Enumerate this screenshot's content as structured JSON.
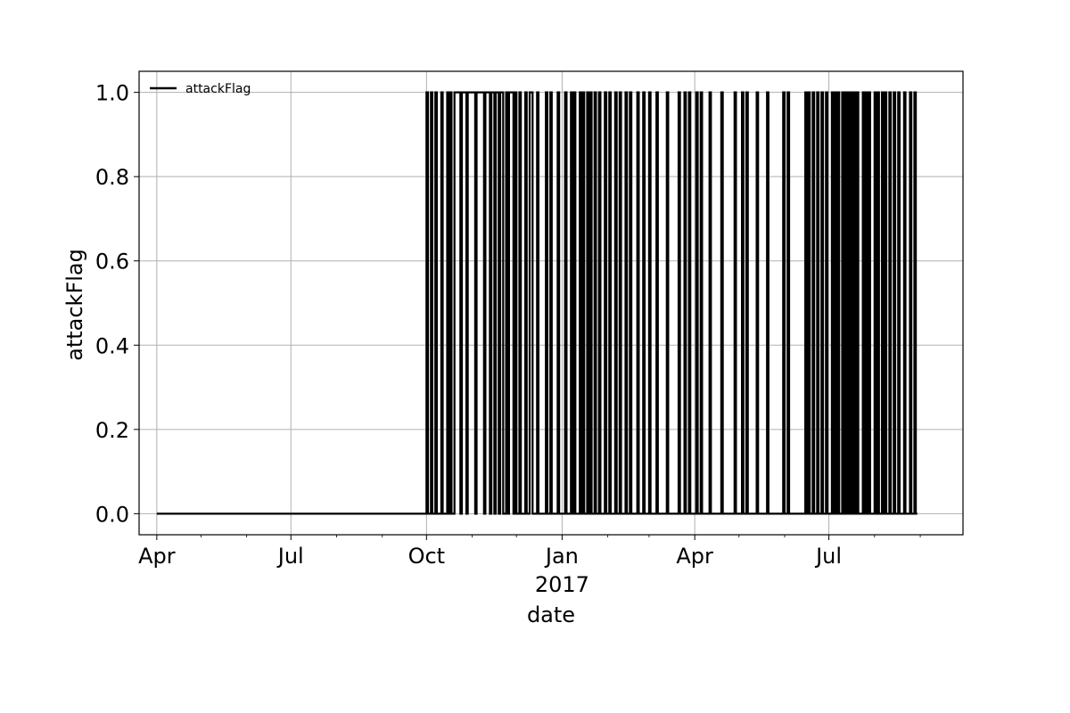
{
  "chart_data": {
    "type": "line",
    "step": true,
    "grid": true,
    "legend_position": "top-left",
    "xlabel": "date",
    "ylabel": "attackFlag",
    "xlim": [
      "2016-03-20",
      "2017-09-30"
    ],
    "ylim": [
      -0.05,
      1.05
    ],
    "x_ticks": [
      {
        "date": "2016-04-01",
        "label": "Apr"
      },
      {
        "date": "2016-07-01",
        "label": "Jul"
      },
      {
        "date": "2016-10-01",
        "label": "Oct"
      },
      {
        "date": "2017-01-01",
        "label": "Jan"
      },
      {
        "date": "2017-04-01",
        "label": "Apr"
      },
      {
        "date": "2017-07-01",
        "label": "Jul"
      }
    ],
    "x_year_label": {
      "date": "2017-01-01",
      "label": "2017"
    },
    "y_ticks": [
      0.0,
      0.2,
      0.4,
      0.6,
      0.8,
      1.0
    ],
    "y_tick_labels": [
      "0.0",
      "0.2",
      "0.4",
      "0.6",
      "0.8",
      "1.0"
    ],
    "series": [
      {
        "name": "attackFlag",
        "color": "#000000",
        "x": [
          "2016-04-01",
          "2016-10-01",
          "2016-10-02",
          "2016-10-04",
          "2016-10-05",
          "2016-10-07",
          "2016-10-08",
          "2016-10-11",
          "2016-10-12",
          "2016-10-15",
          "2016-10-16",
          "2016-10-17",
          "2016-10-18",
          "2016-10-20",
          "2016-10-24",
          "2016-10-25",
          "2016-10-28",
          "2016-10-29",
          "2016-11-03",
          "2016-11-04",
          "2016-11-09",
          "2016-11-10",
          "2016-11-13",
          "2016-11-14",
          "2016-11-16",
          "2016-11-17",
          "2016-11-19",
          "2016-11-20",
          "2016-11-22",
          "2016-11-24",
          "2016-11-25",
          "2016-11-26",
          "2016-11-29",
          "2016-11-30",
          "2016-12-01",
          "2016-12-03",
          "2016-12-04",
          "2016-12-07",
          "2016-12-08",
          "2016-12-10",
          "2016-12-12",
          "2016-12-15",
          "2016-12-16",
          "2016-12-21",
          "2016-12-22",
          "2016-12-24",
          "2016-12-25",
          "2016-12-29",
          "2016-12-30",
          "2017-01-03",
          "2017-01-04",
          "2017-01-07",
          "2017-01-08",
          "2017-01-09",
          "2017-01-10",
          "2017-01-13",
          "2017-01-14",
          "2017-01-15",
          "2017-01-16",
          "2017-01-18",
          "2017-01-19",
          "2017-01-20",
          "2017-01-21",
          "2017-01-23",
          "2017-01-24",
          "2017-01-26",
          "2017-01-27",
          "2017-01-30",
          "2017-01-31",
          "2017-02-02",
          "2017-02-03",
          "2017-02-06",
          "2017-02-07",
          "2017-02-09",
          "2017-02-10",
          "2017-02-13",
          "2017-02-14",
          "2017-02-16",
          "2017-02-17",
          "2017-02-21",
          "2017-02-22",
          "2017-02-25",
          "2017-02-26",
          "2017-03-01",
          "2017-03-02",
          "2017-03-06",
          "2017-03-07",
          "2017-03-13",
          "2017-03-14",
          "2017-03-21",
          "2017-03-22",
          "2017-03-25",
          "2017-03-26",
          "2017-03-28",
          "2017-03-29",
          "2017-04-02",
          "2017-04-03",
          "2017-04-05",
          "2017-04-06",
          "2017-04-11",
          "2017-04-12",
          "2017-04-19",
          "2017-04-20",
          "2017-04-28",
          "2017-04-29",
          "2017-05-03",
          "2017-05-04",
          "2017-05-06",
          "2017-05-07",
          "2017-05-13",
          "2017-05-14",
          "2017-05-20",
          "2017-05-21",
          "2017-05-31",
          "2017-06-01",
          "2017-06-03",
          "2017-06-04",
          "2017-06-15",
          "2017-06-16",
          "2017-06-17",
          "2017-06-18",
          "2017-06-20",
          "2017-06-21",
          "2017-06-23",
          "2017-06-24",
          "2017-06-26",
          "2017-06-27",
          "2017-06-29",
          "2017-06-30",
          "2017-07-03",
          "2017-07-04",
          "2017-07-05",
          "2017-07-06",
          "2017-07-07",
          "2017-07-08",
          "2017-07-10",
          "2017-07-11",
          "2017-07-12",
          "2017-07-13",
          "2017-07-14",
          "2017-07-15",
          "2017-07-16",
          "2017-07-17",
          "2017-07-18",
          "2017-07-19",
          "2017-07-20",
          "2017-07-21",
          "2017-07-24",
          "2017-07-25",
          "2017-07-26",
          "2017-07-27",
          "2017-07-28",
          "2017-07-29",
          "2017-08-01",
          "2017-08-02",
          "2017-08-03",
          "2017-08-04",
          "2017-08-06",
          "2017-08-07",
          "2017-08-08",
          "2017-08-09",
          "2017-08-11",
          "2017-08-12",
          "2017-08-14",
          "2017-08-15",
          "2017-08-17",
          "2017-08-18",
          "2017-08-21",
          "2017-08-22",
          "2017-08-25",
          "2017-08-26",
          "2017-08-28",
          "2017-08-29",
          "2017-08-30"
        ],
        "y": [
          0,
          1,
          0,
          1,
          0,
          1,
          0,
          1,
          0,
          1,
          0,
          1,
          0,
          1,
          0,
          1,
          0,
          1,
          0,
          1,
          0,
          1,
          0,
          1,
          0,
          1,
          0,
          1,
          0,
          1,
          0,
          1,
          0,
          1,
          0,
          1,
          0,
          1,
          0,
          1,
          0,
          1,
          0,
          1,
          0,
          1,
          0,
          1,
          0,
          1,
          0,
          1,
          0,
          1,
          0,
          1,
          0,
          1,
          0,
          1,
          0,
          1,
          0,
          1,
          0,
          1,
          0,
          1,
          0,
          1,
          0,
          1,
          0,
          1,
          0,
          1,
          0,
          1,
          0,
          1,
          0,
          1,
          0,
          1,
          0,
          1,
          0,
          1,
          0,
          1,
          0,
          1,
          0,
          1,
          0,
          1,
          0,
          1,
          0,
          1,
          0,
          1,
          0,
          1,
          0,
          1,
          0,
          1,
          0,
          1,
          0,
          1,
          0,
          1,
          0,
          1,
          0,
          1,
          0,
          1,
          0,
          1,
          0,
          1,
          0,
          1,
          0,
          1,
          0,
          1,
          0,
          1,
          0,
          1,
          0,
          1,
          0,
          1,
          0,
          1,
          0,
          1,
          0,
          1,
          0,
          1,
          0,
          1,
          0,
          1,
          0,
          1,
          0,
          1,
          0,
          1,
          0,
          1,
          0,
          1,
          0,
          1,
          0,
          1,
          0,
          1,
          0,
          1,
          0,
          1,
          0,
          1,
          0,
          0
        ]
      }
    ]
  }
}
